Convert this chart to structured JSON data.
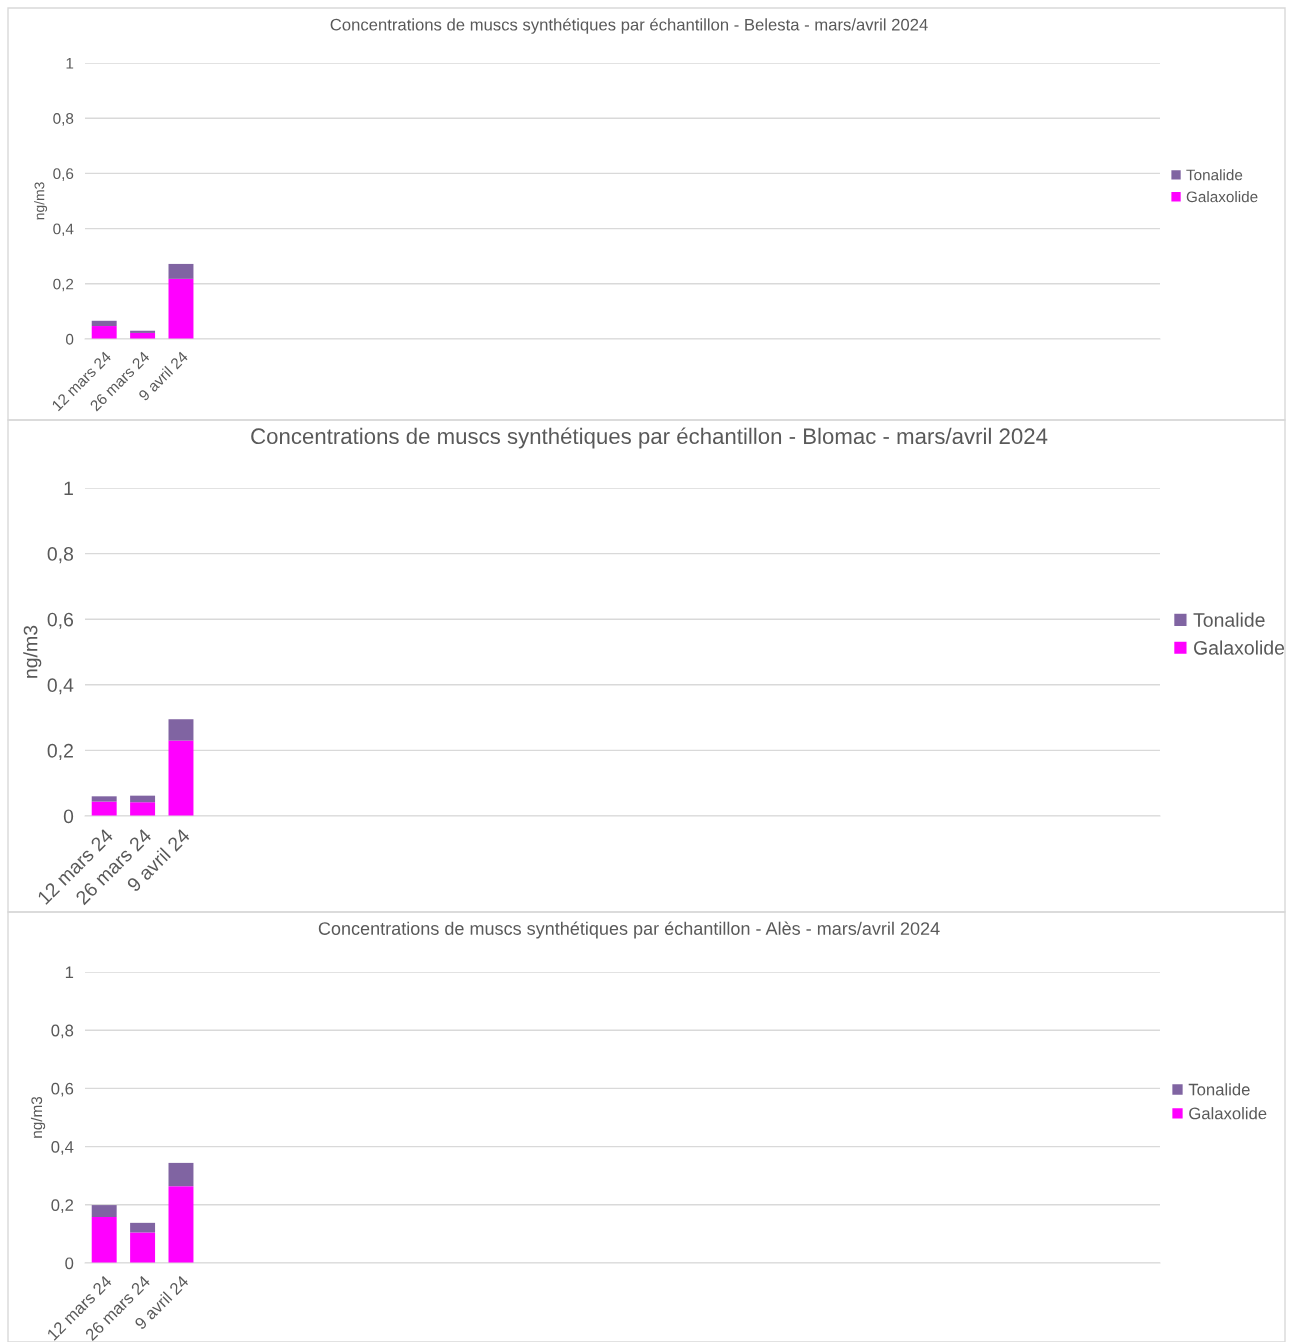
{
  "chart_data": [
    {
      "type": "bar",
      "title": "Concentrations de muscs synthétiques par échantillon - Belesta - mars/avril 2024",
      "ylabel": "ng/m3",
      "stacked": true,
      "grid": "y",
      "legend": "right",
      "categories": [
        "12 mars 24",
        "26 mars 24",
        "9 avril 24",
        null,
        null,
        null,
        null,
        null,
        null,
        null,
        null,
        null,
        null,
        null,
        null,
        null,
        null,
        null,
        null,
        null,
        null,
        null,
        null,
        null,
        null,
        null,
        null,
        null
      ],
      "ylim": [
        0,
        1
      ],
      "yticks": [
        0,
        {
          "value": 0.2,
          "label": "0,2"
        },
        {
          "value": 0.4,
          "label": "0,4"
        },
        {
          "value": 0.6,
          "label": "0,6"
        },
        {
          "value": 0.8,
          "label": "0,8"
        },
        1
      ],
      "series": [
        {
          "name": "Galaxolide",
          "color": "#ff00ff",
          "values": [
            0.047,
            0.022,
            0.218,
            null,
            null,
            null,
            null,
            null,
            null,
            null,
            null,
            null,
            null,
            null,
            null,
            null,
            null,
            null,
            null,
            null,
            null,
            null,
            null,
            null,
            null,
            null,
            null,
            null
          ]
        },
        {
          "name": "Tonalide",
          "color": "#8064a2",
          "values": [
            0.019,
            0.008,
            0.054,
            null,
            null,
            null,
            null,
            null,
            null,
            null,
            null,
            null,
            null,
            null,
            null,
            null,
            null,
            null,
            null,
            null,
            null,
            null,
            null,
            null,
            null,
            null,
            null,
            null
          ]
        }
      ]
    },
    {
      "type": "bar",
      "title": "Concentrations de muscs synthétiques par échantillon - Blomac - mars/avril 2024",
      "ylabel": "ng/m3",
      "stacked": true,
      "grid": "y",
      "legend": "right",
      "categories": [
        "12 mars 24",
        "26 mars 24",
        "9 avril 24",
        null,
        null,
        null,
        null,
        null,
        null,
        null,
        null,
        null,
        null,
        null,
        null,
        null,
        null,
        null,
        null,
        null,
        null,
        null,
        null,
        null,
        null,
        null,
        null,
        null
      ],
      "ylim": [
        0,
        1
      ],
      "yticks": [
        0,
        {
          "value": 0.2,
          "label": "0,2"
        },
        {
          "value": 0.4,
          "label": "0,4"
        },
        {
          "value": 0.6,
          "label": "0,6"
        },
        {
          "value": 0.8,
          "label": "0,8"
        },
        1
      ],
      "series": [
        {
          "name": "Galaxolide",
          "color": "#ff00ff",
          "values": [
            0.044,
            0.042,
            0.23,
            null,
            null,
            null,
            null,
            null,
            null,
            null,
            null,
            null,
            null,
            null,
            null,
            null,
            null,
            null,
            null,
            null,
            null,
            null,
            null,
            null,
            null,
            null,
            null,
            null
          ]
        },
        {
          "name": "Tonalide",
          "color": "#8064a2",
          "values": [
            0.016,
            0.02,
            0.065,
            null,
            null,
            null,
            null,
            null,
            null,
            null,
            null,
            null,
            null,
            null,
            null,
            null,
            null,
            null,
            null,
            null,
            null,
            null,
            null,
            null,
            null,
            null,
            null,
            null
          ]
        }
      ]
    },
    {
      "type": "bar",
      "title": "Concentrations de muscs synthétiques par échantillon - Alès - mars/avril 2024",
      "ylabel": "ng/m3",
      "stacked": true,
      "grid": "y",
      "legend": "right",
      "categories": [
        "12 mars 24",
        "26 mars 24",
        "9 avril 24",
        null,
        null,
        null,
        null,
        null,
        null,
        null,
        null,
        null,
        null,
        null,
        null,
        null,
        null,
        null,
        null,
        null,
        null,
        null,
        null,
        null,
        null,
        null,
        null,
        null
      ],
      "ylim": [
        0,
        1
      ],
      "yticks": [
        0,
        {
          "value": 0.2,
          "label": "0,2"
        },
        {
          "value": 0.4,
          "label": "0,4"
        },
        {
          "value": 0.6,
          "label": "0,6"
        },
        {
          "value": 0.8,
          "label": "0,8"
        },
        1
      ],
      "series": [
        {
          "name": "Galaxolide",
          "color": "#ff00ff",
          "values": [
            0.158,
            0.105,
            0.264,
            null,
            null,
            null,
            null,
            null,
            null,
            null,
            null,
            null,
            null,
            null,
            null,
            null,
            null,
            null,
            null,
            null,
            null,
            null,
            null,
            null,
            null,
            null,
            null,
            null
          ]
        },
        {
          "name": "Tonalide",
          "color": "#8064a2",
          "values": [
            0.041,
            0.033,
            0.08,
            null,
            null,
            null,
            null,
            null,
            null,
            null,
            null,
            null,
            null,
            null,
            null,
            null,
            null,
            null,
            null,
            null,
            null,
            null,
            null,
            null,
            null,
            null,
            null,
            null
          ]
        }
      ]
    }
  ]
}
